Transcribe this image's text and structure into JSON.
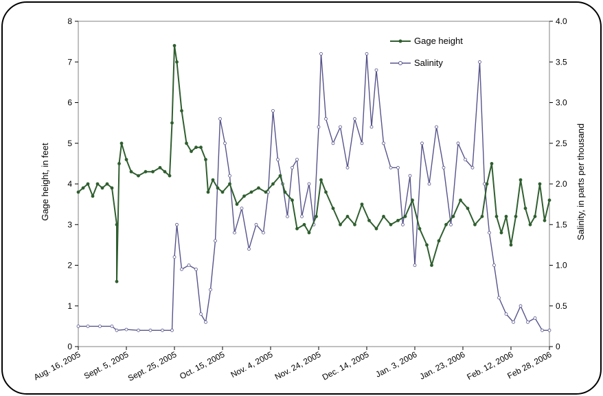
{
  "chart_data": {
    "type": "line",
    "title": "",
    "xlabel": "",
    "ylabel": "Gage height, in feet",
    "y2label": "Salinity, in parts per thousand",
    "ylim": [
      0,
      8
    ],
    "y2lim": [
      0,
      4
    ],
    "yticks": [
      "0",
      "1",
      "2",
      "3",
      "4",
      "5",
      "6",
      "7",
      "8"
    ],
    "y2ticks": [
      "0",
      "0.5",
      "1.0",
      "1.5",
      "2.0",
      "2.5",
      "3.0",
      "3.5",
      "4.0"
    ],
    "xticks": [
      {
        "date": "2005-08-16",
        "label": "Aug. 16, 2005"
      },
      {
        "date": "2005-09-05",
        "label": "Sept. 5, 2005"
      },
      {
        "date": "2005-09-25",
        "label": "Sept. 25, 2005"
      },
      {
        "date": "2005-10-15",
        "label": "Oct. 15, 2005"
      },
      {
        "date": "2005-11-04",
        "label": "Nov. 4, 2005"
      },
      {
        "date": "2005-11-24",
        "label": "Nov. 24, 2005"
      },
      {
        "date": "2005-12-14",
        "label": "Dec. 14, 2005"
      },
      {
        "date": "2006-01-03",
        "label": "Jan. 3, 2006"
      },
      {
        "date": "2006-01-23",
        "label": "Jan. 23, 2006"
      },
      {
        "date": "2006-02-12",
        "label": "Feb. 12, 2006"
      },
      {
        "date": "2006-02-28",
        "label": "Feb 28, 2006"
      }
    ],
    "grid": false,
    "legend_position": "top-right",
    "series": [
      {
        "name": "Gage height",
        "axis": "left",
        "color": "#2f5e2f",
        "marker": "filled-circle",
        "points": [
          [
            "2005-08-16",
            3.8
          ],
          [
            "2005-08-18",
            3.9
          ],
          [
            "2005-08-20",
            4.0
          ],
          [
            "2005-08-22",
            3.7
          ],
          [
            "2005-08-24",
            4.0
          ],
          [
            "2005-08-26",
            3.9
          ],
          [
            "2005-08-28",
            4.0
          ],
          [
            "2005-08-30",
            3.9
          ],
          [
            "2005-09-01",
            3.0
          ],
          [
            "2005-09-01",
            1.6
          ],
          [
            "2005-09-02",
            4.5
          ],
          [
            "2005-09-03",
            5.0
          ],
          [
            "2005-09-05",
            4.6
          ],
          [
            "2005-09-07",
            4.3
          ],
          [
            "2005-09-10",
            4.2
          ],
          [
            "2005-09-13",
            4.3
          ],
          [
            "2005-09-16",
            4.3
          ],
          [
            "2005-09-19",
            4.4
          ],
          [
            "2005-09-21",
            4.3
          ],
          [
            "2005-09-23",
            4.2
          ],
          [
            "2005-09-24",
            5.5
          ],
          [
            "2005-09-25",
            7.4
          ],
          [
            "2005-09-26",
            7.0
          ],
          [
            "2005-09-28",
            5.8
          ],
          [
            "2005-09-30",
            5.0
          ],
          [
            "2005-10-02",
            4.8
          ],
          [
            "2005-10-04",
            4.9
          ],
          [
            "2005-10-06",
            4.9
          ],
          [
            "2005-10-08",
            4.6
          ],
          [
            "2005-10-09",
            3.8
          ],
          [
            "2005-10-11",
            4.1
          ],
          [
            "2005-10-13",
            3.9
          ],
          [
            "2005-10-15",
            3.8
          ],
          [
            "2005-10-18",
            4.0
          ],
          [
            "2005-10-21",
            3.5
          ],
          [
            "2005-10-24",
            3.7
          ],
          [
            "2005-10-27",
            3.8
          ],
          [
            "2005-10-30",
            3.9
          ],
          [
            "2005-11-02",
            3.8
          ],
          [
            "2005-11-05",
            4.0
          ],
          [
            "2005-11-08",
            4.2
          ],
          [
            "2005-11-10",
            3.8
          ],
          [
            "2005-11-13",
            3.6
          ],
          [
            "2005-11-15",
            2.9
          ],
          [
            "2005-11-18",
            3.0
          ],
          [
            "2005-11-20",
            2.8
          ],
          [
            "2005-11-23",
            3.2
          ],
          [
            "2005-11-25",
            4.1
          ],
          [
            "2005-11-27",
            3.8
          ],
          [
            "2005-11-30",
            3.4
          ],
          [
            "2005-12-03",
            3.0
          ],
          [
            "2005-12-06",
            3.2
          ],
          [
            "2005-12-09",
            3.0
          ],
          [
            "2005-12-12",
            3.5
          ],
          [
            "2005-12-15",
            3.1
          ],
          [
            "2005-12-18",
            2.9
          ],
          [
            "2005-12-21",
            3.2
          ],
          [
            "2005-12-24",
            3.0
          ],
          [
            "2005-12-27",
            3.1
          ],
          [
            "2005-12-30",
            3.2
          ],
          [
            "2006-01-02",
            3.6
          ],
          [
            "2006-01-05",
            2.9
          ],
          [
            "2006-01-08",
            2.5
          ],
          [
            "2006-01-10",
            2.0
          ],
          [
            "2006-01-13",
            2.6
          ],
          [
            "2006-01-16",
            3.0
          ],
          [
            "2006-01-19",
            3.2
          ],
          [
            "2006-01-22",
            3.6
          ],
          [
            "2006-01-25",
            3.4
          ],
          [
            "2006-01-28",
            3.0
          ],
          [
            "2006-01-31",
            3.2
          ],
          [
            "2006-02-02",
            4.0
          ],
          [
            "2006-02-04",
            4.5
          ],
          [
            "2006-02-06",
            3.2
          ],
          [
            "2006-02-08",
            2.8
          ],
          [
            "2006-02-10",
            3.2
          ],
          [
            "2006-02-12",
            2.5
          ],
          [
            "2006-02-14",
            3.2
          ],
          [
            "2006-02-16",
            4.1
          ],
          [
            "2006-02-18",
            3.4
          ],
          [
            "2006-02-20",
            3.0
          ],
          [
            "2006-02-22",
            3.2
          ],
          [
            "2006-02-24",
            4.0
          ],
          [
            "2006-02-26",
            3.1
          ],
          [
            "2006-02-28",
            3.6
          ]
        ]
      },
      {
        "name": "Salinity",
        "axis": "right",
        "color": "#56538a",
        "marker": "open-circle",
        "points": [
          [
            "2005-08-16",
            0.25
          ],
          [
            "2005-08-20",
            0.25
          ],
          [
            "2005-08-25",
            0.25
          ],
          [
            "2005-08-30",
            0.25
          ],
          [
            "2005-09-01",
            0.2
          ],
          [
            "2005-09-05",
            0.21
          ],
          [
            "2005-09-10",
            0.2
          ],
          [
            "2005-09-15",
            0.2
          ],
          [
            "2005-09-20",
            0.2
          ],
          [
            "2005-09-24",
            0.2
          ],
          [
            "2005-09-25",
            1.1
          ],
          [
            "2005-09-26",
            1.5
          ],
          [
            "2005-09-28",
            0.95
          ],
          [
            "2005-10-01",
            1.0
          ],
          [
            "2005-10-04",
            0.95
          ],
          [
            "2005-10-06",
            0.4
          ],
          [
            "2005-10-08",
            0.3
          ],
          [
            "2005-10-10",
            0.7
          ],
          [
            "2005-10-12",
            1.3
          ],
          [
            "2005-10-14",
            2.8
          ],
          [
            "2005-10-16",
            2.5
          ],
          [
            "2005-10-18",
            2.1
          ],
          [
            "2005-10-20",
            1.4
          ],
          [
            "2005-10-23",
            1.7
          ],
          [
            "2005-10-26",
            1.2
          ],
          [
            "2005-10-29",
            1.5
          ],
          [
            "2005-11-01",
            1.4
          ],
          [
            "2005-11-03",
            1.9
          ],
          [
            "2005-11-05",
            2.9
          ],
          [
            "2005-11-07",
            2.3
          ],
          [
            "2005-11-09",
            2.0
          ],
          [
            "2005-11-11",
            1.6
          ],
          [
            "2005-11-13",
            2.2
          ],
          [
            "2005-11-15",
            2.3
          ],
          [
            "2005-11-17",
            1.6
          ],
          [
            "2005-11-20",
            2.0
          ],
          [
            "2005-11-22",
            1.5
          ],
          [
            "2005-11-24",
            2.7
          ],
          [
            "2005-11-25",
            3.6
          ],
          [
            "2005-11-27",
            2.8
          ],
          [
            "2005-11-30",
            2.5
          ],
          [
            "2005-12-03",
            2.7
          ],
          [
            "2005-12-06",
            2.2
          ],
          [
            "2005-12-09",
            2.8
          ],
          [
            "2005-12-12",
            2.5
          ],
          [
            "2005-12-14",
            3.6
          ],
          [
            "2005-12-16",
            2.7
          ],
          [
            "2005-12-18",
            3.4
          ],
          [
            "2005-12-21",
            2.5
          ],
          [
            "2005-12-24",
            2.2
          ],
          [
            "2005-12-27",
            2.2
          ],
          [
            "2005-12-29",
            1.5
          ],
          [
            "2006-01-01",
            2.1
          ],
          [
            "2006-01-03",
            1.0
          ],
          [
            "2006-01-06",
            2.5
          ],
          [
            "2006-01-09",
            2.0
          ],
          [
            "2006-01-12",
            2.7
          ],
          [
            "2006-01-15",
            2.2
          ],
          [
            "2006-01-18",
            1.5
          ],
          [
            "2006-01-21",
            2.5
          ],
          [
            "2006-01-24",
            2.3
          ],
          [
            "2006-01-27",
            2.2
          ],
          [
            "2006-01-30",
            3.5
          ],
          [
            "2006-02-01",
            2.0
          ],
          [
            "2006-02-03",
            1.4
          ],
          [
            "2006-02-05",
            1.0
          ],
          [
            "2006-02-07",
            0.6
          ],
          [
            "2006-02-10",
            0.4
          ],
          [
            "2006-02-13",
            0.3
          ],
          [
            "2006-02-16",
            0.5
          ],
          [
            "2006-02-19",
            0.3
          ],
          [
            "2006-02-22",
            0.35
          ],
          [
            "2006-02-25",
            0.2
          ],
          [
            "2006-02-28",
            0.2
          ]
        ]
      }
    ]
  }
}
